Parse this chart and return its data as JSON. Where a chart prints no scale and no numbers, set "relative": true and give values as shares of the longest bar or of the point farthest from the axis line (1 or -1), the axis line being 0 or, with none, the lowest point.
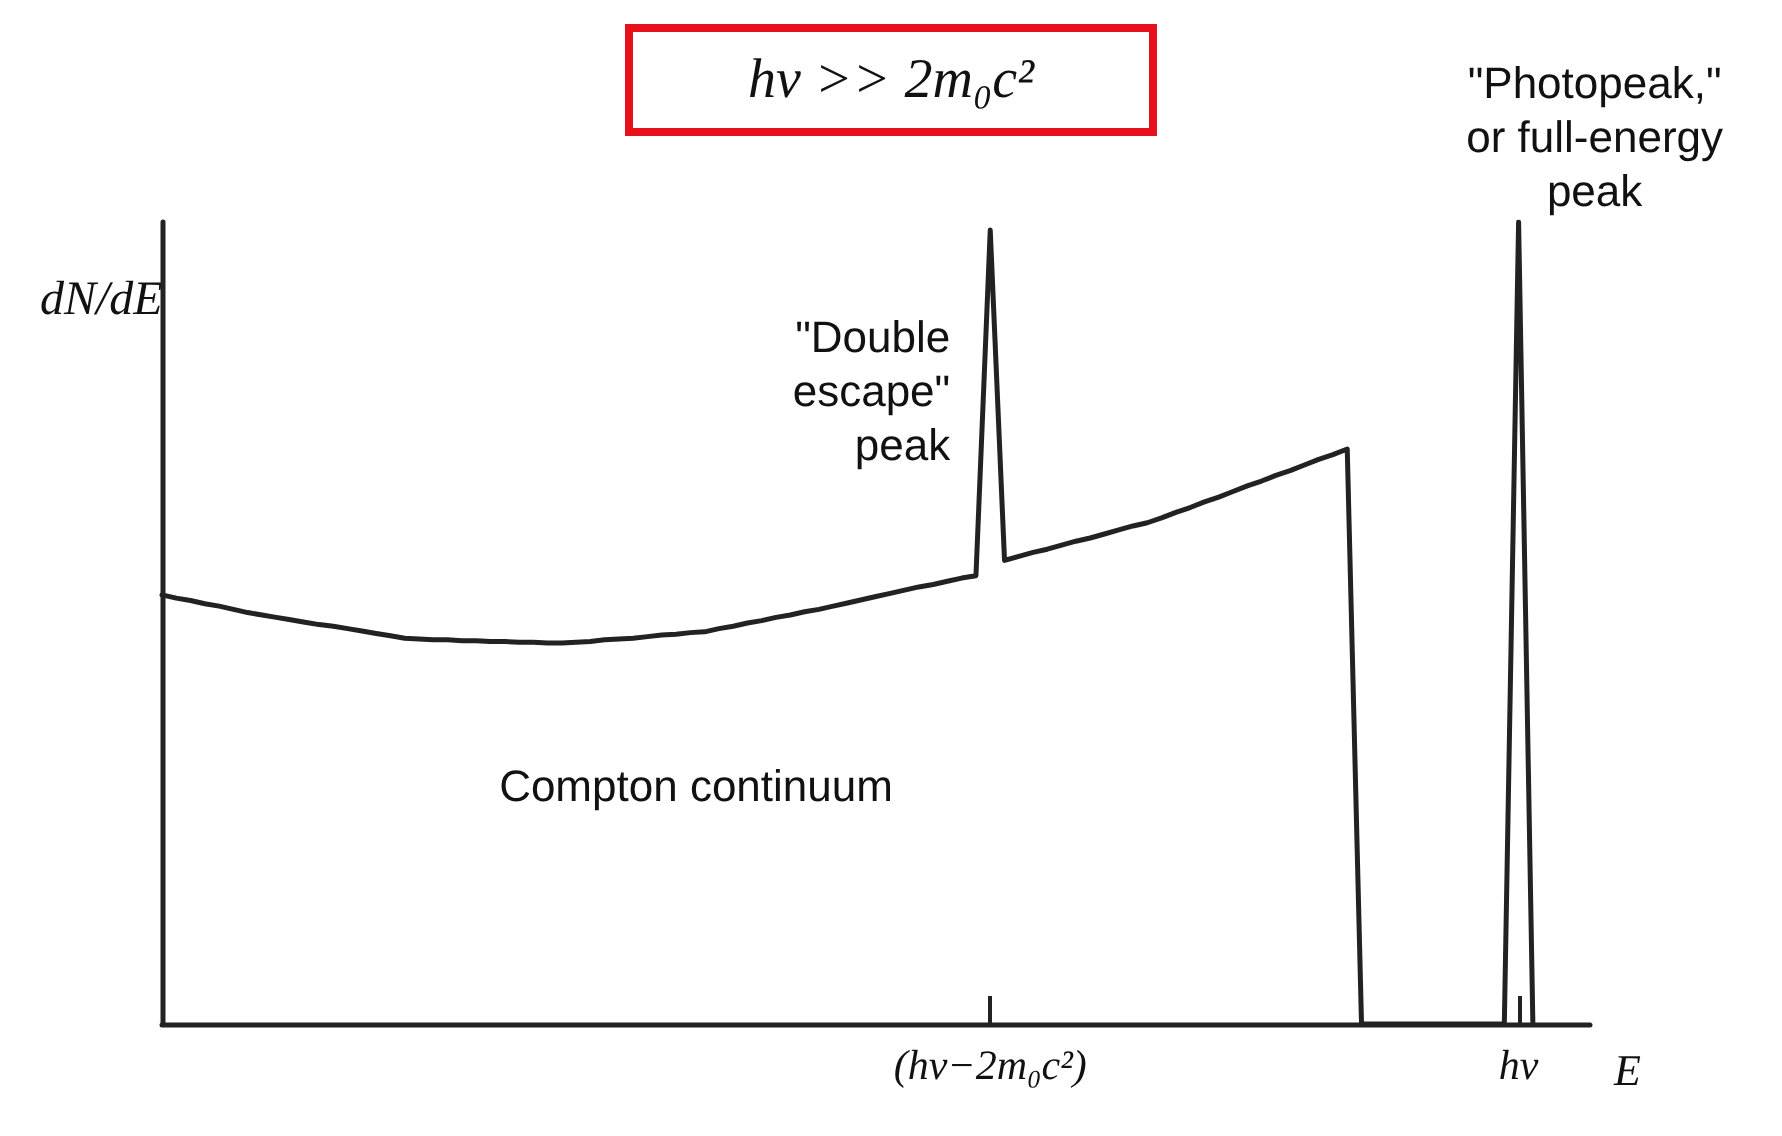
{
  "chart_data": {
    "type": "line",
    "title": "hν >> 2m₀c²",
    "xlabel": "E",
    "ylabel": "dN/dE",
    "relative": true,
    "marker": "none",
    "line_style": "solid",
    "grid": false,
    "categories": [
      null,
      null,
      null,
      null,
      null,
      null,
      null,
      null,
      null,
      null,
      null,
      null,
      null,
      null,
      null,
      null,
      null,
      null,
      null,
      null,
      null,
      null,
      null,
      null,
      null,
      null,
      null,
      null,
      null,
      null,
      null,
      null,
      null,
      null,
      null,
      null,
      null,
      null,
      null,
      null,
      null,
      null,
      null,
      null,
      null,
      null,
      null,
      null,
      null,
      null,
      null,
      null,
      null,
      null,
      null,
      null,
      null,
      null,
      "(hν−2m₀c²)",
      null,
      null,
      null,
      null,
      null,
      null,
      null,
      null,
      null,
      null,
      null,
      null,
      null,
      null,
      null,
      null,
      null,
      null,
      null,
      null,
      null,
      null,
      null,
      null,
      null,
      null,
      null,
      null,
      null,
      null,
      null,
      null,
      null,
      null,
      null,
      null,
      "hν",
      null,
      null,
      null,
      null,
      null
    ],
    "series": [
      {
        "color": "#222222",
        "values": [
          0.535,
          0.531,
          0.528,
          0.524,
          0.521,
          0.517,
          0.513,
          0.51,
          0.507,
          0.504,
          0.501,
          0.498,
          0.496,
          0.493,
          0.49,
          0.487,
          0.484,
          0.481,
          0.48,
          0.479,
          0.479,
          0.478,
          0.478,
          0.477,
          0.477,
          0.476,
          0.476,
          0.475,
          0.475,
          0.476,
          0.477,
          0.479,
          0.48,
          0.481,
          0.483,
          0.485,
          0.486,
          0.488,
          0.489,
          0.493,
          0.496,
          0.5,
          0.503,
          0.507,
          0.51,
          0.514,
          0.517,
          0.521,
          0.525,
          0.529,
          0.533,
          0.537,
          0.541,
          0.545,
          0.548,
          0.552,
          0.556,
          0.559,
          0.99,
          0.578,
          0.583,
          0.588,
          0.592,
          0.597,
          0.602,
          0.606,
          0.611,
          0.616,
          0.621,
          0.625,
          0.631,
          0.638,
          0.644,
          0.651,
          0.657,
          0.664,
          0.671,
          0.677,
          0.684,
          0.69,
          0.697,
          0.704,
          0.71,
          0.717,
          0,
          0,
          0,
          0,
          0,
          0,
          0,
          0,
          0,
          0,
          0,
          1,
          0,
          null,
          null,
          null,
          null
        ]
      }
    ],
    "annotations": [
      {
        "text": "\"Double\nescape\"\npeak",
        "x": "(hν−2m₀c²)",
        "y": 0.99
      },
      {
        "text": "\"Photopeak,\"\nor full-energy\npeak",
        "x": "hν",
        "y": 1
      },
      "Compton continuum"
    ]
  }
}
